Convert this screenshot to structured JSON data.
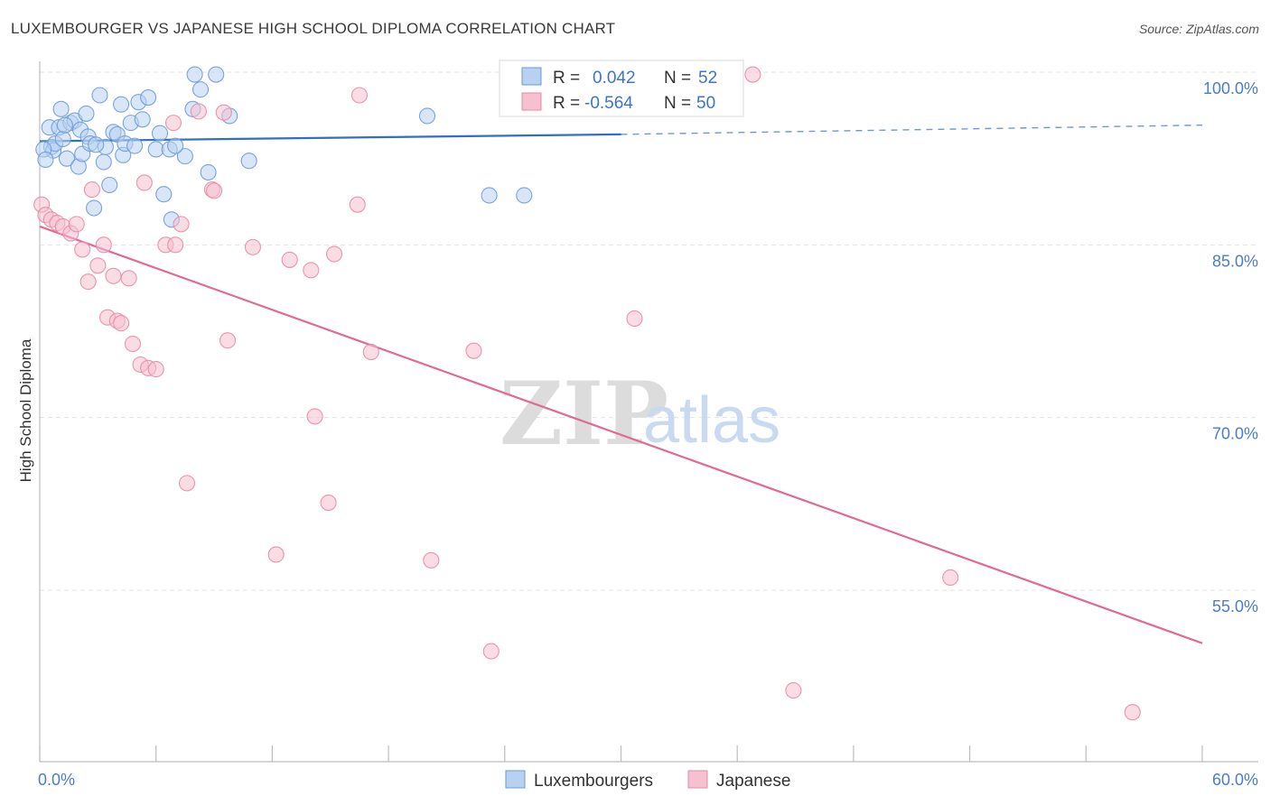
{
  "title": "LUXEMBOURGER VS JAPANESE HIGH SCHOOL DIPLOMA CORRELATION CHART",
  "source": "Source: ZipAtlas.com",
  "colors": {
    "blue_fill": "#b8d1f1",
    "blue_stroke": "#6b9bd8",
    "blue_line": "#2f6fc6",
    "pink_fill": "#f5c0cf",
    "pink_stroke": "#e88aa6",
    "pink_line": "#e06a94",
    "grid": "#e3e3e3",
    "tick_text": "#4a7cc9"
  },
  "legend": {
    "rows": [
      {
        "r_label": "R =",
        "r_value": "0.042",
        "n_label": "N =",
        "n_value": "52",
        "series": "Luxembourgers"
      },
      {
        "r_label": "R =",
        "r_value": "-0.564",
        "n_label": "N =",
        "n_value": "50",
        "series": "Japanese"
      }
    ]
  },
  "watermark": {
    "zip": "ZIP",
    "atlas": "atlas"
  },
  "chart_data": {
    "type": "scatter",
    "title": "LUXEMBOURGER VS JAPANESE HIGH SCHOOL DIPLOMA CORRELATION CHART",
    "xlabel": "",
    "ylabel": "High School Diploma",
    "xlim": [
      0,
      60
    ],
    "ylim": [
      40,
      101.5
    ],
    "x_tick_labels": [
      {
        "value": 0,
        "label": "0.0%"
      },
      {
        "value": 60,
        "label": "60.0%"
      }
    ],
    "y_tick_labels": [
      {
        "value": 100,
        "label": "100.0%"
      },
      {
        "value": 85,
        "label": "85.0%"
      },
      {
        "value": 70,
        "label": "70.0%"
      },
      {
        "value": 55,
        "label": "55.0%"
      }
    ],
    "x_minor_ticks": [
      0,
      6,
      12,
      18,
      24,
      30,
      36,
      42,
      48,
      54,
      60
    ],
    "series": [
      {
        "name": "Luxembourgers",
        "color": "blue",
        "trend": {
          "x1": 0,
          "y1": 94.0,
          "x2": 30,
          "y2": 94.6,
          "dashed_to_x": 60,
          "dashed_to_y": 95.4
        },
        "points": [
          [
            0.5,
            95.2
          ],
          [
            0.6,
            93.5
          ],
          [
            0.7,
            93.2
          ],
          [
            0.8,
            93.8
          ],
          [
            1.0,
            95.2
          ],
          [
            1.1,
            96.8
          ],
          [
            1.2,
            94.2
          ],
          [
            1.4,
            92.5
          ],
          [
            1.6,
            95.6
          ],
          [
            1.8,
            95.8
          ],
          [
            2.0,
            91.8
          ],
          [
            2.1,
            95.0
          ],
          [
            2.2,
            92.9
          ],
          [
            2.4,
            96.4
          ],
          [
            2.5,
            94.4
          ],
          [
            2.6,
            93.8
          ],
          [
            2.8,
            88.2
          ],
          [
            3.1,
            98.0
          ],
          [
            3.3,
            92.2
          ],
          [
            3.4,
            93.5
          ],
          [
            3.6,
            90.2
          ],
          [
            3.8,
            94.8
          ],
          [
            4.0,
            94.6
          ],
          [
            4.2,
            97.2
          ],
          [
            4.3,
            92.8
          ],
          [
            4.4,
            93.8
          ],
          [
            4.7,
            95.6
          ],
          [
            4.9,
            93.6
          ],
          [
            5.1,
            97.4
          ],
          [
            5.6,
            97.8
          ],
          [
            6.0,
            93.3
          ],
          [
            6.4,
            89.4
          ],
          [
            6.7,
            93.3
          ],
          [
            6.8,
            87.2
          ],
          [
            7.5,
            92.7
          ],
          [
            7.9,
            96.8
          ],
          [
            8.0,
            99.8
          ],
          [
            8.3,
            98.5
          ],
          [
            8.7,
            91.3
          ],
          [
            9.1,
            99.8
          ],
          [
            9.8,
            96.2
          ],
          [
            10.8,
            92.3
          ],
          [
            20.0,
            96.2
          ],
          [
            23.2,
            89.3
          ],
          [
            25.0,
            89.3
          ],
          [
            0.2,
            93.3
          ],
          [
            0.3,
            92.4
          ],
          [
            1.3,
            95.4
          ],
          [
            2.9,
            93.7
          ],
          [
            5.3,
            95.9
          ],
          [
            6.2,
            94.7
          ],
          [
            7.0,
            93.6
          ]
        ]
      },
      {
        "name": "Japanese",
        "color": "pink",
        "trend": {
          "x1": 0,
          "y1": 86.6,
          "x2": 60,
          "y2": 50.4
        },
        "points": [
          [
            0.1,
            88.5
          ],
          [
            0.3,
            87.6
          ],
          [
            0.6,
            87.2
          ],
          [
            0.9,
            86.9
          ],
          [
            1.2,
            86.6
          ],
          [
            1.6,
            86.0
          ],
          [
            1.9,
            86.8
          ],
          [
            2.2,
            84.6
          ],
          [
            2.5,
            81.8
          ],
          [
            2.7,
            89.8
          ],
          [
            3.0,
            83.2
          ],
          [
            3.3,
            85.0
          ],
          [
            3.5,
            78.7
          ],
          [
            3.8,
            82.3
          ],
          [
            4.0,
            78.4
          ],
          [
            4.2,
            78.2
          ],
          [
            4.6,
            82.1
          ],
          [
            4.8,
            76.4
          ],
          [
            5.2,
            74.6
          ],
          [
            5.4,
            90.4
          ],
          [
            5.6,
            74.3
          ],
          [
            6.0,
            74.2
          ],
          [
            6.5,
            85.0
          ],
          [
            6.9,
            95.6
          ],
          [
            7.0,
            85.0
          ],
          [
            7.3,
            86.8
          ],
          [
            7.6,
            64.3
          ],
          [
            8.2,
            96.6
          ],
          [
            8.9,
            89.8
          ],
          [
            9.0,
            89.7
          ],
          [
            9.5,
            96.5
          ],
          [
            9.7,
            76.7
          ],
          [
            11.0,
            84.8
          ],
          [
            12.2,
            58.1
          ],
          [
            12.9,
            83.7
          ],
          [
            14.0,
            82.8
          ],
          [
            14.2,
            70.1
          ],
          [
            14.9,
            62.6
          ],
          [
            15.2,
            84.2
          ],
          [
            16.4,
            88.5
          ],
          [
            16.5,
            98.0
          ],
          [
            17.1,
            75.7
          ],
          [
            20.2,
            57.6
          ],
          [
            22.4,
            75.8
          ],
          [
            23.3,
            49.7
          ],
          [
            30.7,
            78.6
          ],
          [
            36.8,
            99.8
          ],
          [
            38.9,
            46.3
          ],
          [
            47.0,
            56.1
          ],
          [
            56.4,
            44.4
          ]
        ]
      }
    ]
  }
}
